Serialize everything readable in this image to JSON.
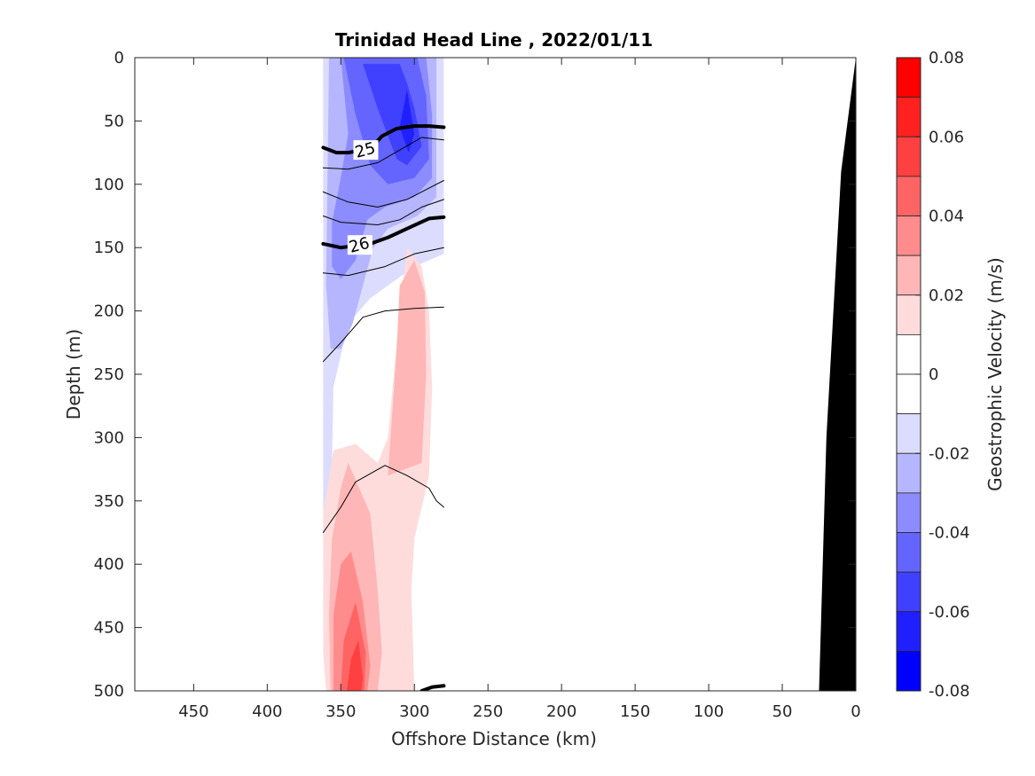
{
  "chart_data": {
    "type": "contour",
    "title": "Trinidad Head Line , 2022/01/11",
    "xlabel": "Offshore Distance (km)",
    "ylabel": "Depth (m)",
    "colorbar_label": "Geostrophic Velocity (m/s)",
    "x_reversed": true,
    "y_reversed": true,
    "xlim": [
      0,
      490
    ],
    "ylim": [
      0,
      500
    ],
    "x_ticks": [
      450,
      400,
      350,
      300,
      250,
      200,
      150,
      100,
      50,
      0
    ],
    "y_ticks": [
      0,
      50,
      100,
      150,
      200,
      250,
      300,
      350,
      400,
      450,
      500
    ],
    "colorbar_ticks": [
      0.08,
      0.06,
      0.04,
      0.02,
      0,
      -0.02,
      -0.04,
      -0.06,
      -0.08
    ],
    "colorbar_tick_labels": [
      "0.08",
      "0.06",
      "0.04",
      "0.02",
      "0",
      "-0.02",
      "-0.04",
      "-0.06",
      "-0.08"
    ],
    "colorbar_levels": [
      {
        "from": 0.07,
        "to": 0.08,
        "color": "#ff0000"
      },
      {
        "from": 0.06,
        "to": 0.07,
        "color": "#ff2020"
      },
      {
        "from": 0.05,
        "to": 0.06,
        "color": "#ff4040"
      },
      {
        "from": 0.04,
        "to": 0.05,
        "color": "#ff6464"
      },
      {
        "from": 0.03,
        "to": 0.04,
        "color": "#ff8c8c"
      },
      {
        "from": 0.02,
        "to": 0.03,
        "color": "#ffb6b6"
      },
      {
        "from": 0.01,
        "to": 0.02,
        "color": "#ffdcdc"
      },
      {
        "from": 0.0,
        "to": 0.01,
        "color": "#ffffff"
      },
      {
        "from": -0.01,
        "to": 0.0,
        "color": "#ffffff"
      },
      {
        "from": -0.02,
        "to": -0.01,
        "color": "#dcdcff"
      },
      {
        "from": -0.03,
        "to": -0.02,
        "color": "#b6b6ff"
      },
      {
        "from": -0.04,
        "to": -0.03,
        "color": "#8c8cff"
      },
      {
        "from": -0.05,
        "to": -0.04,
        "color": "#6464ff"
      },
      {
        "from": -0.06,
        "to": -0.05,
        "color": "#4040ff"
      },
      {
        "from": -0.07,
        "to": -0.06,
        "color": "#2020ff"
      },
      {
        "from": -0.08,
        "to": -0.07,
        "color": "#0000ff"
      }
    ],
    "velocity_regions": [
      {
        "color": "#ffdcdc",
        "points": [
          [
            362,
            0
          ],
          [
            357,
            0
          ],
          [
            357,
            120
          ],
          [
            362,
            120
          ]
        ]
      },
      {
        "color": "#ffb6b6",
        "points": [
          [
            360,
            0
          ],
          [
            358,
            0
          ],
          [
            358,
            90
          ],
          [
            360,
            90
          ]
        ]
      },
      {
        "color": "#dcdcff",
        "points": [
          [
            357,
            0
          ],
          [
            280,
            0
          ],
          [
            280,
            155
          ],
          [
            300,
            165
          ],
          [
            330,
            190
          ],
          [
            345,
            210
          ],
          [
            355,
            260
          ],
          [
            357,
            380
          ],
          [
            362,
            380
          ],
          [
            362,
            0
          ]
        ]
      },
      {
        "color": "#b6b6ff",
        "points": [
          [
            353,
            0
          ],
          [
            285,
            0
          ],
          [
            285,
            110
          ],
          [
            298,
            125
          ],
          [
            318,
            135
          ],
          [
            328,
            150
          ],
          [
            335,
            180
          ],
          [
            342,
            210
          ],
          [
            350,
            230
          ],
          [
            357,
            230
          ],
          [
            360,
            180
          ],
          [
            358,
            0
          ]
        ]
      },
      {
        "color": "#8c8cff",
        "points": [
          [
            350,
            0
          ],
          [
            292,
            0
          ],
          [
            288,
            45
          ],
          [
            288,
            95
          ],
          [
            300,
            110
          ],
          [
            320,
            118
          ],
          [
            332,
            128
          ],
          [
            340,
            160
          ],
          [
            350,
            175
          ],
          [
            356,
            165
          ],
          [
            356,
            130
          ],
          [
            350,
            95
          ],
          [
            345,
            60
          ]
        ]
      },
      {
        "color": "#6464ff",
        "points": [
          [
            348,
            0
          ],
          [
            298,
            0
          ],
          [
            292,
            30
          ],
          [
            290,
            80
          ],
          [
            300,
            95
          ],
          [
            318,
            100
          ],
          [
            330,
            85
          ],
          [
            340,
            45
          ]
        ]
      },
      {
        "color": "#4040ff",
        "points": [
          [
            335,
            5
          ],
          [
            310,
            5
          ],
          [
            305,
            20
          ],
          [
            300,
            40
          ],
          [
            295,
            70
          ],
          [
            305,
            85
          ],
          [
            312,
            80
          ],
          [
            325,
            40
          ]
        ]
      },
      {
        "color": "#2020ff",
        "points": [
          [
            305,
            25
          ],
          [
            300,
            60
          ],
          [
            304,
            75
          ],
          [
            310,
            55
          ]
        ]
      },
      {
        "color": "#ffdcdc",
        "points": [
          [
            305,
            150
          ],
          [
            295,
            165
          ],
          [
            290,
            200
          ],
          [
            288,
            260
          ],
          [
            290,
            330
          ],
          [
            300,
            380
          ],
          [
            302,
            420
          ],
          [
            300,
            500
          ],
          [
            360,
            500
          ],
          [
            362,
            470
          ],
          [
            362,
            360
          ],
          [
            355,
            310
          ],
          [
            340,
            305
          ],
          [
            325,
            320
          ],
          [
            318,
            300
          ],
          [
            310,
            200
          ]
        ]
      },
      {
        "color": "#ffb6b6",
        "points": [
          [
            300,
            160
          ],
          [
            293,
            185
          ],
          [
            292,
            250
          ],
          [
            295,
            320
          ],
          [
            318,
            330
          ],
          [
            312,
            230
          ],
          [
            310,
            180
          ]
        ]
      },
      {
        "color": "#ffb6b6",
        "points": [
          [
            345,
            320
          ],
          [
            330,
            360
          ],
          [
            325,
            420
          ],
          [
            322,
            470
          ],
          [
            325,
            500
          ],
          [
            357,
            500
          ],
          [
            358,
            440
          ],
          [
            356,
            380
          ],
          [
            350,
            340
          ]
        ]
      },
      {
        "color": "#ff8c8c",
        "points": [
          [
            343,
            390
          ],
          [
            335,
            430
          ],
          [
            330,
            480
          ],
          [
            332,
            500
          ],
          [
            355,
            500
          ],
          [
            355,
            440
          ],
          [
            350,
            400
          ]
        ]
      },
      {
        "color": "#ff6464",
        "points": [
          [
            340,
            430
          ],
          [
            333,
            470
          ],
          [
            334,
            500
          ],
          [
            350,
            500
          ],
          [
            348,
            460
          ]
        ]
      },
      {
        "color": "#ff4040",
        "points": [
          [
            338,
            460
          ],
          [
            335,
            490
          ],
          [
            336,
            500
          ],
          [
            346,
            500
          ],
          [
            343,
            475
          ]
        ]
      }
    ],
    "sigma_contours": [
      {
        "level": 25,
        "emphasized": true,
        "points": [
          [
            362,
            71
          ],
          [
            353,
            75
          ],
          [
            345,
            75
          ],
          [
            330,
            72
          ],
          [
            322,
            62
          ],
          [
            312,
            56
          ],
          [
            300,
            54
          ],
          [
            290,
            54
          ],
          [
            280,
            55
          ]
        ]
      },
      {
        "level": 26,
        "emphasized": true,
        "points": [
          [
            362,
            147
          ],
          [
            350,
            150
          ],
          [
            330,
            147
          ],
          [
            318,
            142
          ],
          [
            305,
            135
          ],
          [
            290,
            127
          ],
          [
            280,
            126
          ]
        ]
      },
      {
        "level": null,
        "emphasized": false,
        "points": [
          [
            362,
            87
          ],
          [
            345,
            88
          ],
          [
            325,
            83
          ],
          [
            310,
            73
          ],
          [
            295,
            63
          ],
          [
            280,
            65
          ]
        ]
      },
      {
        "level": null,
        "emphasized": false,
        "points": [
          [
            362,
            106
          ],
          [
            345,
            114
          ],
          [
            325,
            118
          ],
          [
            305,
            112
          ],
          [
            290,
            103
          ],
          [
            280,
            97
          ]
        ]
      },
      {
        "level": null,
        "emphasized": false,
        "points": [
          [
            362,
            125
          ],
          [
            350,
            130
          ],
          [
            325,
            132
          ],
          [
            310,
            128
          ],
          [
            295,
            118
          ],
          [
            280,
            112
          ]
        ]
      },
      {
        "level": null,
        "emphasized": false,
        "points": [
          [
            362,
            170
          ],
          [
            345,
            172
          ],
          [
            320,
            165
          ],
          [
            300,
            155
          ],
          [
            280,
            150
          ]
        ]
      },
      {
        "level": null,
        "emphasized": false,
        "points": [
          [
            362,
            240
          ],
          [
            350,
            225
          ],
          [
            335,
            205
          ],
          [
            320,
            200
          ],
          [
            300,
            198
          ],
          [
            280,
            197
          ]
        ]
      },
      {
        "level": null,
        "emphasized": false,
        "points": [
          [
            362,
            375
          ],
          [
            350,
            355
          ],
          [
            340,
            335
          ],
          [
            320,
            322
          ],
          [
            305,
            330
          ],
          [
            290,
            340
          ],
          [
            285,
            350
          ],
          [
            280,
            355
          ]
        ]
      },
      {
        "level": null,
        "emphasized": true,
        "points": [
          [
            295,
            500
          ],
          [
            288,
            497
          ],
          [
            280,
            496
          ]
        ]
      }
    ],
    "contour_labels": [
      {
        "text": "25",
        "x": 333,
        "y": 75
      },
      {
        "text": "26",
        "x": 337,
        "y": 150
      }
    ],
    "bathymetry": {
      "color": "#000000",
      "points": [
        [
          25,
          500
        ],
        [
          20,
          300
        ],
        [
          10,
          90
        ],
        [
          0,
          0
        ],
        [
          0,
          500
        ]
      ]
    }
  }
}
